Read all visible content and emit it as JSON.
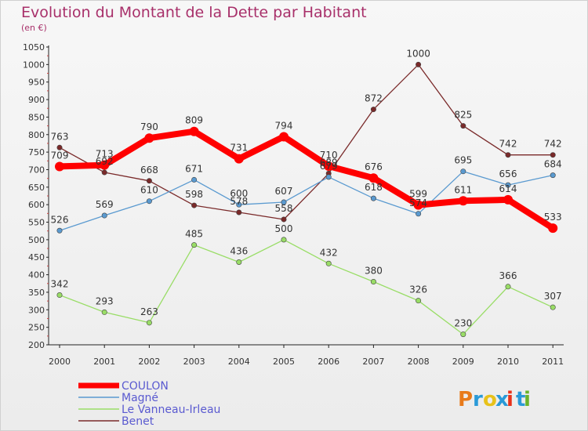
{
  "header": {
    "title": "Evolution du Montant de la Dette par Habitant",
    "subtitle": "(en €)"
  },
  "logo": {
    "text": "Proxiti",
    "colors": [
      "#e87a1a",
      "#2a9ad8",
      "#e8c21a",
      "#2a9ad8",
      "#e8321a",
      "#2a9ad8",
      "#6ab42a"
    ]
  },
  "chart_data": {
    "type": "line",
    "title": "Evolution du Montant de la Dette par Habitant",
    "subtitle": "(en €)",
    "x": [
      "2000",
      "2001",
      "2002",
      "2003",
      "2004",
      "2005",
      "2006",
      "2007",
      "2008",
      "2009",
      "2010",
      "2011"
    ],
    "ylim": [
      200,
      1050
    ],
    "yticks": [
      200,
      250,
      300,
      350,
      400,
      450,
      500,
      550,
      600,
      650,
      700,
      750,
      800,
      850,
      900,
      950,
      1000,
      1050
    ],
    "grid": false,
    "legend_position": "bottom-left",
    "series": [
      {
        "name": "COULON",
        "color": "#ff0000",
        "values": [
          709,
          713,
          790,
          809,
          731,
          794,
          710,
          676,
          599,
          611,
          614,
          533
        ]
      },
      {
        "name": "Magné",
        "color": "#5a9ad0",
        "values": [
          526,
          569,
          610,
          671,
          600,
          607,
          679,
          618,
          574,
          695,
          656,
          684
        ]
      },
      {
        "name": "Le Vanneau-Irleau",
        "color": "#99dd66",
        "values": [
          342,
          293,
          263,
          485,
          436,
          500,
          432,
          380,
          326,
          230,
          366,
          307
        ]
      },
      {
        "name": "Benet",
        "color": "#7a2a2a",
        "values": [
          763,
          692,
          668,
          598,
          578,
          558,
          689,
          872,
          1000,
          825,
          742,
          742
        ]
      }
    ]
  }
}
